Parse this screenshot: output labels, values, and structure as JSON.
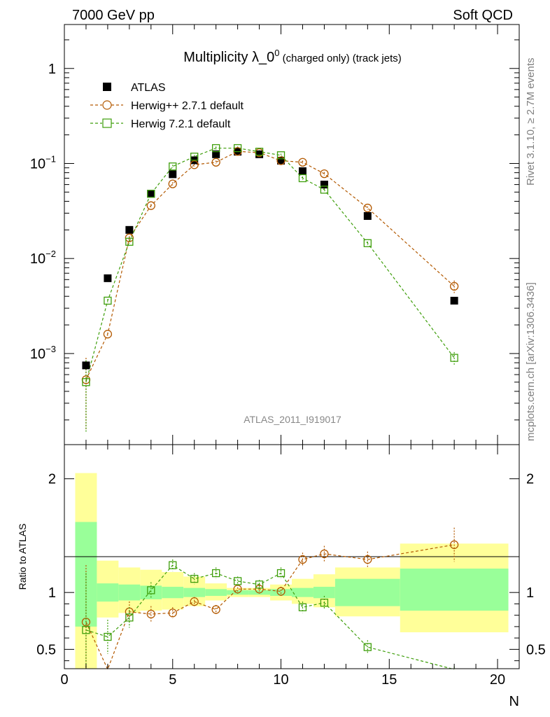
{
  "header": {
    "left": "7000 GeV pp",
    "right": "Soft QCD"
  },
  "plot": {
    "title_main": "Multiplicity λ_0",
    "title_sup": "0",
    "title_rest": " (charged only) (track jets)",
    "analysis_label": "ATLAS_2011_I919017",
    "side_label_top": "Rivet 3.1.10, ≥ 2.7M events",
    "side_label_bottom": "mcplots.cern.ch [arXiv:1306.3436]",
    "ratio_ylabel": "Ratio to ATLAS",
    "xlabel": "N"
  },
  "colors": {
    "herwig_pp": "#b35900",
    "herwig7": "#3e9e0b",
    "band_outer": "#ffff99",
    "band_inner": "#99ff99"
  },
  "chart_data": {
    "type": "scatter",
    "main": {
      "yscale": "log",
      "ylim": [
        0.00011,
        2.9
      ],
      "yticks": [
        {
          "v": 0.001,
          "b": "10",
          "e": "−3"
        },
        {
          "v": 0.01,
          "b": "10",
          "e": "−2"
        },
        {
          "v": 0.1,
          "b": "10",
          "e": "−1"
        },
        {
          "v": 1,
          "b": "1",
          "e": ""
        }
      ]
    },
    "xlim": [
      0,
      21
    ],
    "xticks": [
      0,
      5,
      10,
      15,
      20
    ],
    "series": [
      {
        "name": "ATLAS",
        "marker": "square-filled",
        "x": [
          1,
          2,
          3,
          4,
          5,
          6,
          7,
          8,
          9,
          10,
          11,
          12,
          14,
          18
        ],
        "y": [
          0.00075,
          0.0062,
          0.02,
          0.048,
          0.077,
          0.108,
          0.125,
          0.133,
          0.125,
          0.107,
          0.083,
          0.06,
          0.028,
          0.0036
        ]
      },
      {
        "name": "Herwig++ 2.7.1 default",
        "marker": "circle-open",
        "line": "dashed",
        "x": [
          1,
          2,
          3,
          4,
          5,
          6,
          7,
          8,
          9,
          10,
          11,
          12,
          14,
          18
        ],
        "y": [
          0.00053,
          0.0016,
          0.0165,
          0.036,
          0.061,
          0.097,
          0.103,
          0.134,
          0.13,
          0.107,
          0.103,
          0.078,
          0.034,
          0.0051
        ]
      },
      {
        "name": "Herwig 7.2.1 default",
        "marker": "square-open",
        "line": "dashed",
        "x": [
          1,
          2,
          3,
          4,
          5,
          6,
          7,
          8,
          9,
          10,
          11,
          12,
          14,
          18
        ],
        "y": [
          0.0005,
          0.0036,
          0.015,
          0.048,
          0.093,
          0.118,
          0.145,
          0.145,
          0.133,
          0.122,
          0.07,
          0.053,
          0.0145,
          0.0009
        ]
      }
    ],
    "ratio": {
      "ylim": [
        0.33,
        2.3
      ],
      "yticks": [
        0.5,
        1,
        2
      ],
      "bands": [
        {
          "x": [
            0.5,
            1.5
          ],
          "inner": [
            0.7,
            1.62
          ],
          "outer": [
            0.3,
            2.05
          ]
        },
        {
          "x": [
            1.5,
            2.5
          ],
          "inner": [
            0.92,
            1.08
          ],
          "outer": [
            0.78,
            1.28
          ]
        },
        {
          "x": [
            2.5,
            3.5
          ],
          "inner": [
            0.93,
            1.07
          ],
          "outer": [
            0.82,
            1.22
          ]
        },
        {
          "x": [
            3.5,
            4.5
          ],
          "inner": [
            0.94,
            1.06
          ],
          "outer": [
            0.84,
            1.2
          ]
        },
        {
          "x": [
            4.5,
            5.5
          ],
          "inner": [
            0.95,
            1.05
          ],
          "outer": [
            0.85,
            1.18
          ]
        },
        {
          "x": [
            5.5,
            6.5
          ],
          "inner": [
            0.96,
            1.04
          ],
          "outer": [
            0.88,
            1.14
          ]
        },
        {
          "x": [
            6.5,
            7.5
          ],
          "inner": [
            0.97,
            1.03
          ],
          "outer": [
            0.93,
            1.08
          ]
        },
        {
          "x": [
            7.5,
            8.5
          ],
          "inner": [
            0.98,
            1.02
          ],
          "outer": [
            0.96,
            1.04
          ]
        },
        {
          "x": [
            8.5,
            9.5
          ],
          "inner": [
            0.98,
            1.02
          ],
          "outer": [
            0.96,
            1.04
          ]
        },
        {
          "x": [
            9.5,
            10.5
          ],
          "inner": [
            0.97,
            1.03
          ],
          "outer": [
            0.93,
            1.07
          ]
        },
        {
          "x": [
            10.5,
            11.5
          ],
          "inner": [
            0.96,
            1.04
          ],
          "outer": [
            0.9,
            1.12
          ]
        },
        {
          "x": [
            11.5,
            12.5
          ],
          "inner": [
            0.95,
            1.05
          ],
          "outer": [
            0.87,
            1.16
          ]
        },
        {
          "x": [
            12.5,
            15.5
          ],
          "inner": [
            0.88,
            1.12
          ],
          "outer": [
            0.79,
            1.22
          ]
        },
        {
          "x": [
            15.5,
            20.5
          ],
          "inner": [
            0.84,
            1.21
          ],
          "outer": [
            0.65,
            1.43
          ]
        }
      ],
      "series": [
        {
          "name": "Herwig++ 2.7.1 default",
          "marker": "circle-open",
          "x": [
            1,
            2,
            3,
            4,
            5,
            6,
            7,
            8,
            9,
            10,
            11,
            12,
            14,
            18
          ],
          "y": [
            0.74,
            0.26,
            0.83,
            0.81,
            0.82,
            0.92,
            0.85,
            1.03,
            1.03,
            1.01,
            1.29,
            1.34,
            1.29,
            1.42
          ],
          "err": [
            0.5,
            0.1,
            0.09,
            0.07,
            0.05,
            0.04,
            0.04,
            0.04,
            0.04,
            0.04,
            0.06,
            0.07,
            0.07,
            0.15
          ]
        },
        {
          "name": "Herwig 7.2.1 default",
          "marker": "square-open",
          "x": [
            1,
            2,
            3,
            4,
            5,
            6,
            7,
            8,
            9,
            10,
            11,
            12,
            14,
            18
          ],
          "y": [
            0.67,
            0.61,
            0.78,
            1.02,
            1.24,
            1.12,
            1.17,
            1.1,
            1.07,
            1.17,
            0.87,
            0.91,
            0.52,
            0.25
          ],
          "err": [
            0.5,
            0.15,
            0.09,
            0.07,
            0.05,
            0.05,
            0.05,
            0.04,
            0.04,
            0.05,
            0.05,
            0.06,
            0.06,
            0.1
          ]
        }
      ]
    }
  }
}
